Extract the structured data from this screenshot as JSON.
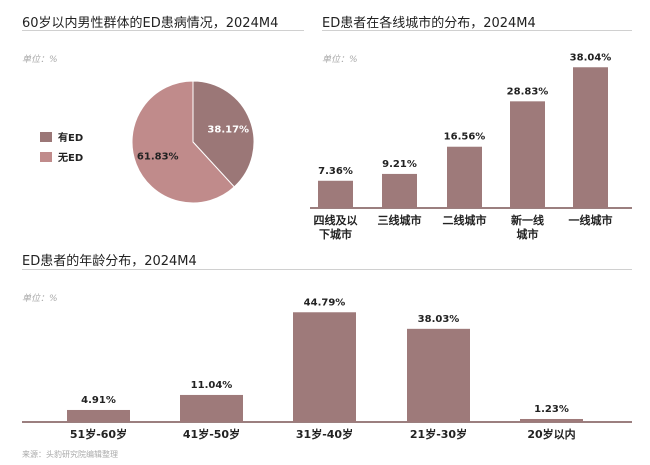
{
  "colors": {
    "bar": "#9e7a7a",
    "pie_ed": "#9b7777",
    "pie_no_ed": "#c08b8b",
    "axis": "#7a5555"
  },
  "footer": {
    "source": "来源：头豹研究院编辑整理"
  },
  "chart_data": [
    {
      "type": "pie",
      "title": "60岁以内男性群体的ED患病情况，2024M4",
      "unit_label": "单位：%",
      "slices": [
        {
          "name": "有ED",
          "value": 38.17,
          "label": "38.17%"
        },
        {
          "name": "无ED",
          "value": 61.83,
          "label": "61.83%"
        }
      ],
      "legend": "left"
    },
    {
      "type": "bar",
      "title": "ED患者在各线城市的分布，2024M4",
      "unit_label": "单位：%",
      "categories": [
        "四线及以下城市",
        "三线城市",
        "二线城市",
        "新一线城市",
        "一线城市"
      ],
      "category_lines": [
        [
          "四线及以",
          "下城市"
        ],
        [
          "三线城市"
        ],
        [
          "二线城市"
        ],
        [
          "新一线",
          "城市"
        ],
        [
          "一线城市"
        ]
      ],
      "values": [
        7.36,
        9.21,
        16.56,
        28.83,
        38.04
      ],
      "labels": [
        "7.36%",
        "9.21%",
        "16.56%",
        "28.83%",
        "38.04%"
      ]
    },
    {
      "type": "bar",
      "title": "ED患者的年龄分布，2024M4",
      "unit_label": "单位：%",
      "categories": [
        "51岁-60岁",
        "41岁-50岁",
        "31岁-40岁",
        "21岁-30岁",
        "20岁以内"
      ],
      "values": [
        4.91,
        11.04,
        44.79,
        38.03,
        1.23
      ],
      "labels": [
        "4.91%",
        "11.04%",
        "44.79%",
        "38.03%",
        "1.23%"
      ]
    }
  ]
}
